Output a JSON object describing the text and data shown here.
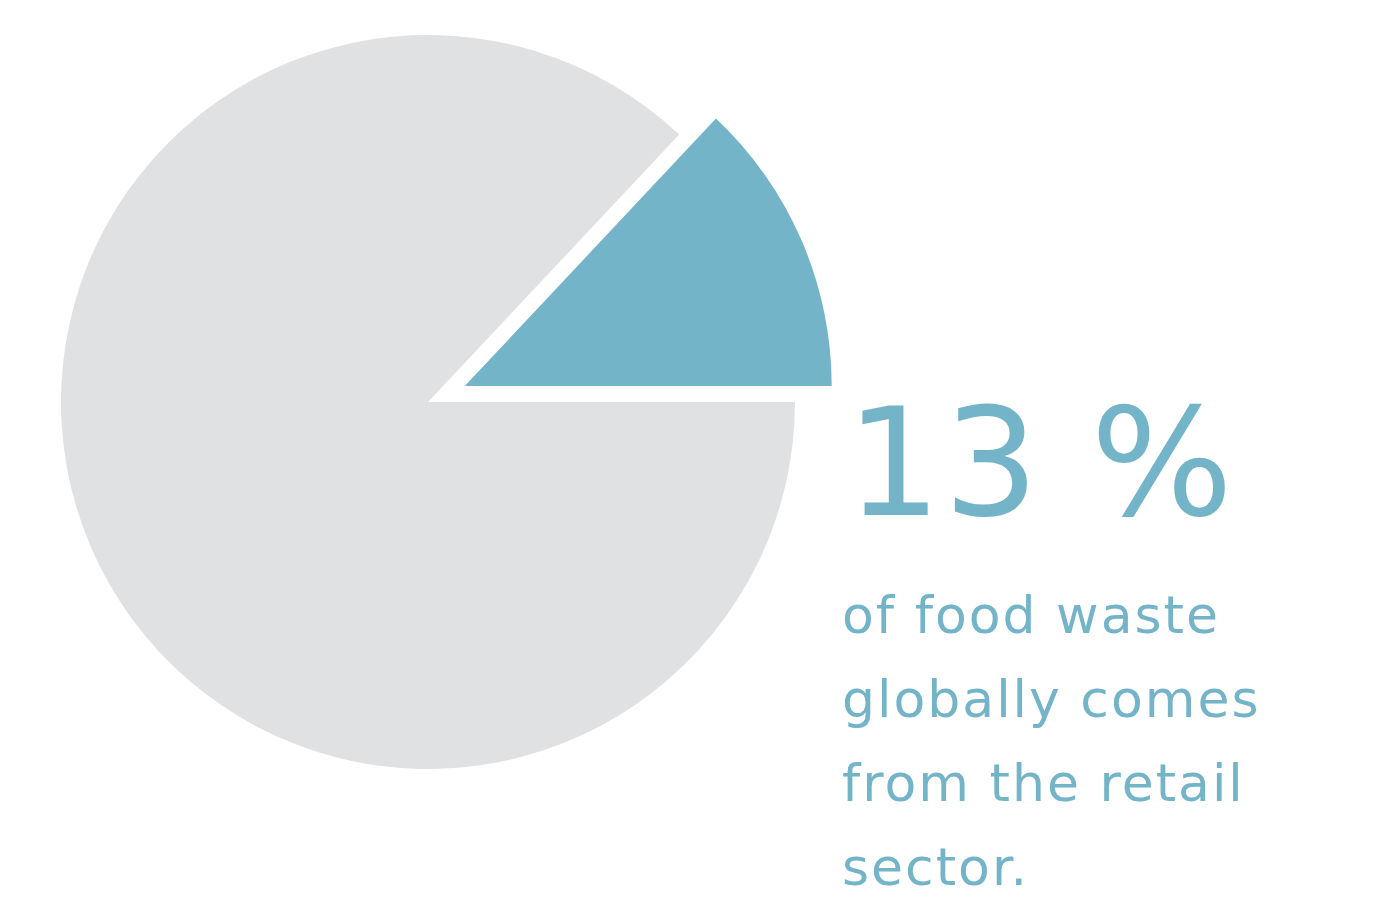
{
  "chart_data": {
    "type": "pie",
    "categories": [
      null,
      null
    ],
    "values": [
      13,
      87
    ],
    "colors": [
      "#74b4c9",
      "#e0e1e3"
    ],
    "value_labels": [
      "13 %",
      null
    ],
    "annotations": [
      "of food waste globally comes from the retail sector."
    ]
  }
}
